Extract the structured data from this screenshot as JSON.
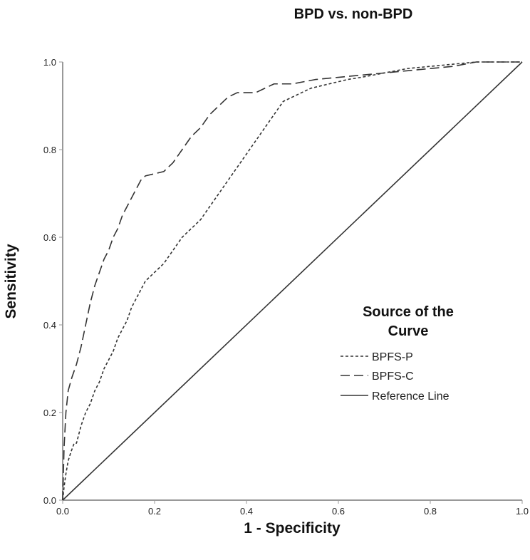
{
  "chart_data": {
    "type": "line",
    "title": "BPD vs. non-BPD",
    "xlabel": "1 - Specificity",
    "ylabel": "Sensitivity",
    "xlim": [
      0,
      1
    ],
    "ylim": [
      0,
      1
    ],
    "xticks": [
      "0.0",
      "0.2",
      "0.4",
      "0.6",
      "0.8",
      "1.0"
    ],
    "yticks": [
      "0.0",
      "0.2",
      "0.4",
      "0.6",
      "0.8",
      "1.0"
    ],
    "grid": false,
    "legend": {
      "title_lines": [
        "Source of the",
        "Curve"
      ],
      "placement": "right"
    },
    "series": [
      {
        "name": "BPFS-P",
        "style": "short-dash",
        "color": "#333333",
        "x": [
          0,
          0.003,
          0.007,
          0.012,
          0.018,
          0.025,
          0.03,
          0.035,
          0.04,
          0.05,
          0.06,
          0.07,
          0.08,
          0.09,
          0.1,
          0.11,
          0.12,
          0.13,
          0.14,
          0.15,
          0.16,
          0.17,
          0.18,
          0.2,
          0.22,
          0.24,
          0.26,
          0.28,
          0.3,
          0.32,
          0.34,
          0.36,
          0.38,
          0.4,
          0.42,
          0.44,
          0.46,
          0.48,
          0.5,
          0.52,
          0.54,
          0.56,
          0.58,
          0.6,
          0.62,
          0.65,
          0.7,
          0.75,
          0.8,
          0.85,
          0.9,
          0.95,
          1.0
        ],
        "y": [
          0,
          0.03,
          0.06,
          0.09,
          0.11,
          0.13,
          0.13,
          0.15,
          0.17,
          0.2,
          0.22,
          0.25,
          0.27,
          0.3,
          0.32,
          0.34,
          0.37,
          0.39,
          0.41,
          0.44,
          0.46,
          0.48,
          0.5,
          0.52,
          0.54,
          0.57,
          0.6,
          0.62,
          0.64,
          0.67,
          0.7,
          0.73,
          0.76,
          0.79,
          0.82,
          0.85,
          0.88,
          0.91,
          0.92,
          0.93,
          0.94,
          0.945,
          0.95,
          0.955,
          0.96,
          0.965,
          0.975,
          0.985,
          0.99,
          0.995,
          1.0,
          1.0,
          1.0
        ]
      },
      {
        "name": "BPFS-C",
        "style": "long-dash",
        "color": "#333333",
        "x": [
          0,
          0.003,
          0.007,
          0.012,
          0.02,
          0.03,
          0.04,
          0.05,
          0.06,
          0.07,
          0.08,
          0.09,
          0.1,
          0.11,
          0.12,
          0.13,
          0.14,
          0.15,
          0.16,
          0.17,
          0.18,
          0.2,
          0.22,
          0.24,
          0.26,
          0.28,
          0.3,
          0.32,
          0.34,
          0.36,
          0.38,
          0.4,
          0.42,
          0.44,
          0.46,
          0.5,
          0.55,
          0.6,
          0.65,
          0.7,
          0.75,
          0.8,
          0.85,
          0.9,
          0.95,
          1.0
        ],
        "y": [
          0,
          0.12,
          0.2,
          0.25,
          0.28,
          0.31,
          0.35,
          0.4,
          0.45,
          0.49,
          0.52,
          0.55,
          0.57,
          0.6,
          0.62,
          0.65,
          0.67,
          0.69,
          0.71,
          0.73,
          0.74,
          0.745,
          0.75,
          0.77,
          0.8,
          0.83,
          0.85,
          0.88,
          0.9,
          0.92,
          0.93,
          0.93,
          0.93,
          0.94,
          0.95,
          0.95,
          0.96,
          0.965,
          0.97,
          0.975,
          0.98,
          0.985,
          0.99,
          1.0,
          1.0,
          1.0
        ]
      },
      {
        "name": "Reference Line",
        "style": "solid",
        "color": "#333333",
        "x": [
          0,
          1
        ],
        "y": [
          0,
          1
        ]
      }
    ]
  }
}
